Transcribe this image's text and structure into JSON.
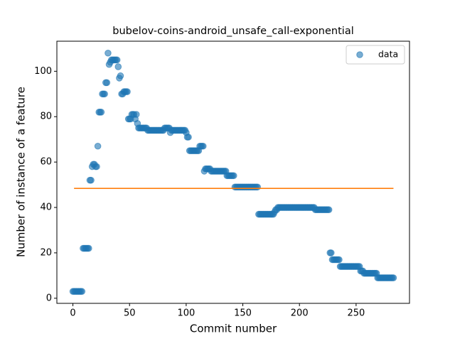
{
  "chart_data": {
    "type": "scatter",
    "title": "bubelov-coins-android_unsafe_call-exponential",
    "xlabel": "Commit number",
    "ylabel": "Number of instance of a feature",
    "x": [
      0,
      1,
      2,
      3,
      4,
      5,
      6,
      7,
      8,
      9,
      10,
      11,
      12,
      13,
      14,
      15,
      16,
      17,
      18,
      19,
      20,
      21,
      22,
      23,
      24,
      25,
      26,
      27,
      28,
      29,
      30,
      31,
      32,
      33,
      34,
      35,
      36,
      37,
      38,
      39,
      40,
      41,
      42,
      43,
      44,
      45,
      46,
      47,
      48,
      49,
      50,
      51,
      52,
      53,
      54,
      55,
      56,
      57,
      58,
      59,
      60,
      61,
      62,
      63,
      64,
      65,
      66,
      67,
      68,
      69,
      70,
      71,
      72,
      73,
      74,
      75,
      76,
      77,
      78,
      79,
      80,
      81,
      82,
      83,
      84,
      85,
      86,
      87,
      88,
      89,
      90,
      91,
      92,
      93,
      94,
      95,
      96,
      97,
      98,
      99,
      100,
      101,
      102,
      103,
      104,
      105,
      106,
      107,
      108,
      109,
      110,
      111,
      112,
      113,
      114,
      115,
      116,
      117,
      118,
      119,
      120,
      121,
      122,
      123,
      124,
      125,
      126,
      127,
      128,
      129,
      130,
      131,
      132,
      133,
      134,
      135,
      136,
      137,
      138,
      139,
      140,
      141,
      142,
      143,
      144,
      145,
      146,
      147,
      148,
      149,
      150,
      151,
      152,
      153,
      154,
      155,
      156,
      157,
      158,
      159,
      160,
      161,
      162,
      163,
      164,
      165,
      166,
      167,
      168,
      169,
      170,
      171,
      172,
      173,
      174,
      175,
      176,
      177,
      178,
      179,
      180,
      181,
      182,
      183,
      184,
      185,
      186,
      187,
      188,
      189,
      190,
      191,
      192,
      193,
      194,
      195,
      196,
      197,
      198,
      199,
      200,
      201,
      202,
      203,
      204,
      205,
      206,
      207,
      208,
      209,
      210,
      211,
      212,
      213,
      214,
      215,
      216,
      217,
      218,
      219,
      220,
      221,
      222,
      223,
      224,
      225,
      226,
      227,
      228,
      229,
      230,
      231,
      232,
      233,
      234,
      235,
      236,
      237,
      238,
      239,
      240,
      241,
      242,
      243,
      244,
      245,
      246,
      247,
      248,
      249,
      250,
      251,
      252,
      253,
      254,
      255,
      256,
      257,
      258,
      259,
      260,
      261,
      262,
      263,
      264,
      265,
      266,
      267,
      268,
      269,
      270,
      271,
      272,
      273,
      274,
      275,
      276,
      277,
      278,
      279,
      280,
      281,
      282,
      283
    ],
    "series": [
      {
        "name": "data",
        "color": "#1f77b4",
        "values": [
          3,
          3,
          3,
          3,
          3,
          3,
          3,
          3,
          3,
          22,
          22,
          22,
          22,
          22,
          22,
          52,
          52,
          58,
          59,
          59,
          58,
          58,
          67,
          82,
          82,
          82,
          90,
          90,
          90,
          95,
          95,
          108,
          103,
          104,
          105,
          105,
          105,
          105,
          105,
          105,
          102,
          97,
          98,
          90,
          90,
          91,
          91,
          91,
          91,
          79,
          79,
          79,
          81,
          81,
          81,
          79,
          81,
          77,
          75,
          75,
          75,
          75,
          75,
          75,
          75,
          75,
          74,
          74,
          74,
          74,
          74,
          74,
          74,
          74,
          74,
          74,
          74,
          74,
          74,
          74,
          74,
          75,
          75,
          75,
          75,
          75,
          73,
          74,
          74,
          74,
          74,
          74,
          74,
          74,
          74,
          74,
          74,
          74,
          74,
          74,
          73,
          71,
          71,
          65,
          65,
          65,
          65,
          65,
          65,
          65,
          65,
          65,
          67,
          67,
          67,
          67,
          56,
          57,
          57,
          57,
          57,
          57,
          56,
          56,
          56,
          56,
          56,
          56,
          56,
          56,
          56,
          56,
          56,
          56,
          56,
          56,
          54,
          54,
          54,
          54,
          54,
          54,
          54,
          49,
          49,
          49,
          49,
          49,
          49,
          49,
          49,
          49,
          49,
          49,
          49,
          49,
          49,
          49,
          49,
          49,
          49,
          49,
          49,
          49,
          37,
          37,
          37,
          37,
          37,
          37,
          37,
          37,
          37,
          37,
          37,
          37,
          37,
          37,
          38,
          39,
          39,
          40,
          40,
          40,
          40,
          40,
          40,
          40,
          40,
          40,
          40,
          40,
          40,
          40,
          40,
          40,
          40,
          40,
          40,
          40,
          40,
          40,
          40,
          40,
          40,
          40,
          40,
          40,
          40,
          40,
          40,
          40,
          40,
          40,
          39,
          39,
          39,
          39,
          39,
          39,
          39,
          39,
          39,
          39,
          39,
          39,
          39,
          20,
          20,
          17,
          17,
          17,
          17,
          17,
          17,
          17,
          14,
          14,
          14,
          14,
          14,
          14,
          14,
          14,
          14,
          14,
          14,
          14,
          14,
          14,
          14,
          14,
          14,
          14,
          12,
          12,
          12,
          11,
          11,
          11,
          11,
          11,
          11,
          11,
          11,
          11,
          11,
          11,
          11,
          9,
          9,
          9,
          9,
          9,
          9,
          9,
          9,
          9,
          9,
          9,
          9,
          9,
          9,
          9
        ]
      }
    ],
    "fit_line": {
      "x": [
        1,
        283
      ],
      "values": [
        48.4,
        48.4
      ],
      "color": "#ff7f0e"
    },
    "xlim": [
      -14.15,
      297.15
    ],
    "xticks": [
      0,
      50,
      100,
      150,
      200,
      250
    ],
    "ylim": [
      -2.25,
      113.25
    ],
    "yticks": [
      0,
      20,
      40,
      60,
      80,
      100
    ],
    "legend": "upper right"
  }
}
